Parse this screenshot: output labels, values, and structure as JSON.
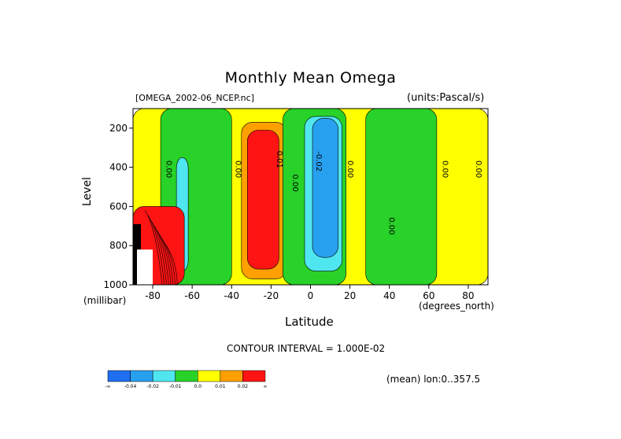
{
  "chart_data": {
    "type": "heatmap",
    "title": "Monthly Mean Omega",
    "file_label": "[OMEGA_2002-06_NCEP.nc]",
    "units_label": "(units:Pascal/s)",
    "xlabel": "Latitude",
    "x_units": "(degrees_north)",
    "ylabel": "Level",
    "y_units": "(millibar)",
    "xlim": [
      -90,
      90
    ],
    "ylim": [
      1000,
      100
    ],
    "x_ticks": [
      -80,
      -60,
      -40,
      -20,
      0,
      20,
      40,
      60,
      80
    ],
    "x_tick_labels": [
      "-80",
      "-60",
      "-40",
      "-20",
      "0",
      "20",
      "40",
      "60",
      "80"
    ],
    "y_ticks": [
      200,
      400,
      600,
      800,
      1000
    ],
    "y_tick_labels": [
      "200",
      "400",
      "600",
      "800",
      "1000"
    ],
    "contour_interval_text": "CONTOUR INTERVAL = 1.000E-02",
    "mean_text": "(mean) lon:0..357.5",
    "contour_labels": [
      {
        "text": "0.00",
        "x": -73,
        "y": 410
      },
      {
        "text": "0.00",
        "x": -38,
        "y": 410
      },
      {
        "text": "0.01",
        "x": -17,
        "y": 360
      },
      {
        "text": "0.00",
        "x": -9,
        "y": 480
      },
      {
        "text": "-0.02",
        "x": 3,
        "y": 370
      },
      {
        "text": "0.00",
        "x": 19,
        "y": 410
      },
      {
        "text": "0.00",
        "x": 40,
        "y": 700
      },
      {
        "text": "0.00",
        "x": 67,
        "y": 410
      },
      {
        "text": "0.00",
        "x": 84,
        "y": 410
      }
    ],
    "colorbar": {
      "levels": [
        "-∞",
        "-0.04",
        "-0.02",
        "-0.01",
        "0.0",
        "0.01",
        "0.02",
        "∞"
      ],
      "colors": [
        "#1e6ef0",
        "#28a0f0",
        "#50e6f0",
        "#28d228",
        "#ffff00",
        "#ffa000",
        "#ff1414"
      ]
    },
    "regions": [
      {
        "label": "0.0 to 0.01",
        "color": "#ffff00",
        "lat_range": [
          -90,
          90
        ],
        "lev_range": [
          100,
          1000
        ]
      },
      {
        "label": "-0.01 to 0.0",
        "color": "#28d228",
        "lat_range": [
          -76,
          -40
        ],
        "lev_range": [
          100,
          1000
        ]
      },
      {
        "label": "-0.02 to -0.01",
        "color": "#50e6f0",
        "lat_range": [
          -68,
          -62
        ],
        "lev_range": [
          350,
          930
        ]
      },
      {
        "label": "0.01 to 0.02",
        "color": "#ffa000",
        "lat_range": [
          -35,
          -12
        ],
        "lev_range": [
          170,
          970
        ]
      },
      {
        "label": "> 0.02",
        "color": "#ff1414",
        "lat_range": [
          -32,
          -16
        ],
        "lev_range": [
          210,
          920
        ]
      },
      {
        "label": "-0.01 to 0.0",
        "color": "#28d228",
        "lat_range": [
          -14,
          18
        ],
        "lev_range": [
          100,
          1000
        ]
      },
      {
        "label": "-0.02 to -0.01",
        "color": "#50e6f0",
        "lat_range": [
          -3,
          16
        ],
        "lev_range": [
          140,
          930
        ]
      },
      {
        "label": "-0.04 to -0.02",
        "color": "#28a0f0",
        "lat_range": [
          1,
          14
        ],
        "lev_range": [
          150,
          860
        ]
      },
      {
        "label": "-0.01 to 0.0",
        "color": "#28d228",
        "lat_range": [
          28,
          64
        ],
        "lev_range": [
          100,
          1000
        ]
      },
      {
        "label": "> 0.02",
        "color": "#ff1414",
        "lat_range": [
          -90,
          -64
        ],
        "lev_range": [
          600,
          1000
        ]
      }
    ]
  }
}
